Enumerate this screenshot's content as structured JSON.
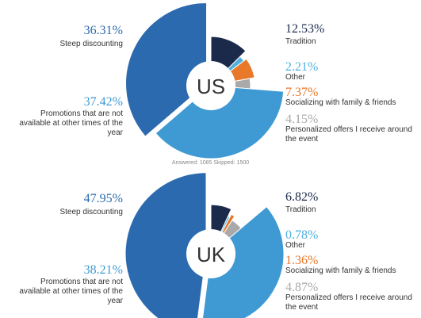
{
  "chart_data": [
    {
      "type": "pie",
      "title": "US",
      "categories": [
        "Tradition",
        "Other",
        "Socializing with family & friends",
        "Personalized offers I receive around the event",
        "Promotions that are not available at other times of the year",
        "Steep discounting"
      ],
      "values": [
        12.53,
        2.21,
        7.37,
        4.15,
        37.42,
        36.31
      ],
      "value_labels": [
        "12.53%",
        "2.21%",
        "7.37%",
        "4.15%",
        "37.42%",
        "36.31%"
      ],
      "colors": [
        "#1b2a4a",
        "#4fb0de",
        "#e8782a",
        "#a9a9a9",
        "#3f9ad4",
        "#2c6aaf"
      ],
      "annotation": "Answered: 1085  Skipped: 1500"
    },
    {
      "type": "pie",
      "title": "UK",
      "categories": [
        "Tradition",
        "Other",
        "Socializing with family & friends",
        "Personalized offers I receive around the event",
        "Promotions that are not available at other times of the year",
        "Steep discounting"
      ],
      "values": [
        6.82,
        0.78,
        1.36,
        4.87,
        38.21,
        47.95
      ],
      "value_labels": [
        "6.82%",
        "0.78%",
        "1.36%",
        "4.87%",
        "38.21%",
        "47.95%"
      ],
      "colors": [
        "#1b2a4a",
        "#4fb0de",
        "#e8782a",
        "#a9a9a9",
        "#3f9ad4",
        "#2c6aaf"
      ]
    }
  ]
}
